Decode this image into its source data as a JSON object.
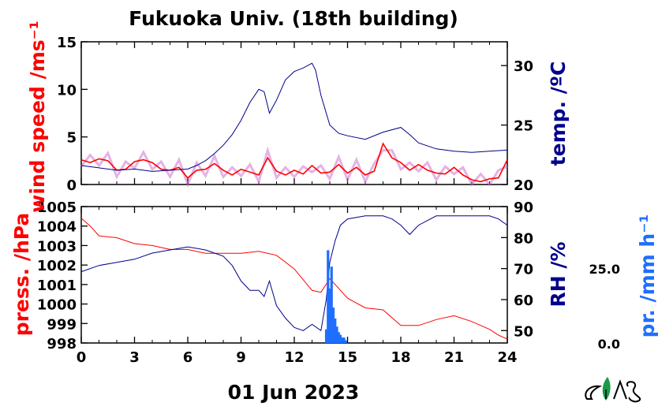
{
  "title": "Fukuoka Univ. (18th building)",
  "date_label": "01 Jun 2023",
  "colors": {
    "wind": "#ff0000",
    "wind_raw": "#cc66cc",
    "temp": "#00008b",
    "press": "#ff0000",
    "rh": "#00008b",
    "rain": "#1e6fff",
    "logo": "#1a9a4a"
  },
  "chart_data": [
    {
      "type": "line",
      "panel": "top",
      "grid": false,
      "x_ticks": [
        0,
        3,
        6,
        9,
        12,
        15,
        18,
        21,
        24
      ],
      "xlim": [
        0,
        24
      ],
      "left_axis": {
        "label": "wind speed /ms⁻¹",
        "ylim": [
          0,
          15
        ],
        "ticks": [
          0,
          5,
          10,
          15
        ]
      },
      "right_axis": {
        "label": "temp. /ºC",
        "ylim": [
          20,
          32
        ],
        "ticks": [
          20,
          25,
          30
        ]
      },
      "series": [
        {
          "axis": "left",
          "role": "wind",
          "x": [
            0,
            0.5,
            1,
            1.5,
            2,
            2.5,
            3,
            3.5,
            4,
            4.5,
            5,
            5.5,
            6,
            6.5,
            7,
            7.5,
            8,
            8.5,
            9,
            9.5,
            10,
            10.5,
            11,
            11.5,
            12,
            12.5,
            13,
            13.5,
            14,
            14.5,
            15,
            15.5,
            16,
            16.5,
            17,
            17.5,
            18,
            18.5,
            19,
            19.5,
            20,
            20.5,
            21,
            21.5,
            22,
            22.5,
            23,
            23.5,
            24
          ],
          "y": [
            2.6,
            2.3,
            2.7,
            2.5,
            1.5,
            1.6,
            2.4,
            2.6,
            2.3,
            1.6,
            1.5,
            1.8,
            0.7,
            1.5,
            1.6,
            2.2,
            1.5,
            1.0,
            1.6,
            1.3,
            1.0,
            2.8,
            1.4,
            1.0,
            1.5,
            1.1,
            2.0,
            1.2,
            1.3,
            2.1,
            1.2,
            1.8,
            1.0,
            1.4,
            4.3,
            2.8,
            2.3,
            1.5,
            2.1,
            1.5,
            1.2,
            1.1,
            1.8,
            1.0,
            0.5,
            0.3,
            0.6,
            0.7,
            2.6
          ]
        },
        {
          "axis": "right",
          "role": "temp",
          "x": [
            0,
            1,
            2,
            3,
            4,
            5,
            6,
            6.5,
            7,
            7.5,
            8,
            8.5,
            9,
            9.5,
            10,
            10.3,
            10.6,
            11,
            11.5,
            12,
            12.5,
            13,
            13.2,
            13.5,
            14,
            14.5,
            15,
            16,
            17,
            18,
            18.5,
            19,
            20,
            21,
            22,
            23,
            24
          ],
          "y": [
            21.6,
            21.4,
            21.2,
            21.3,
            21.1,
            21.2,
            21.3,
            21.6,
            22.0,
            22.6,
            23.3,
            24.2,
            25.4,
            26.9,
            28.0,
            27.8,
            26.0,
            27.1,
            28.8,
            29.5,
            29.8,
            30.2,
            29.6,
            27.5,
            25.0,
            24.3,
            24.1,
            23.8,
            24.4,
            24.8,
            24.2,
            23.5,
            23.0,
            22.8,
            22.7,
            22.8,
            22.9
          ]
        }
      ]
    },
    {
      "type": "line",
      "panel": "bottom",
      "grid": false,
      "x_ticks": [
        0,
        3,
        6,
        9,
        12,
        15,
        18,
        21,
        24
      ],
      "xlim": [
        0,
        24
      ],
      "left_axis": {
        "label": "press. /hPa",
        "ylim": [
          998,
          1005
        ],
        "ticks": [
          998,
          999,
          1000,
          1001,
          1002,
          1003,
          1004,
          1005
        ]
      },
      "right_axis": {
        "label": "RH /%",
        "ylim": [
          46,
          90
        ],
        "ticks": [
          50,
          60,
          70,
          80,
          90
        ]
      },
      "far_right_axis": {
        "label": "pr. /mm h⁻¹",
        "ticks": [
          "0.0",
          "25.0"
        ],
        "ylim": [
          0,
          50
        ]
      },
      "x_tick_labels": [
        "0",
        "3",
        "6",
        "9",
        "12",
        "15",
        "18",
        "21",
        "24"
      ],
      "series": [
        {
          "axis": "left",
          "role": "press",
          "x": [
            0,
            0.5,
            1,
            2,
            3,
            4,
            5,
            6,
            7,
            8,
            9,
            10,
            11,
            12,
            13,
            13.5,
            14,
            14.5,
            15,
            16,
            17,
            18,
            19,
            20,
            21,
            22,
            23,
            23.5,
            24
          ],
          "y": [
            1004.4,
            1004.0,
            1003.5,
            1003.4,
            1003.1,
            1003.0,
            1002.8,
            1002.8,
            1002.6,
            1002.6,
            1002.6,
            1002.7,
            1002.5,
            1001.8,
            1000.7,
            1000.6,
            1001.3,
            1000.8,
            1000.3,
            999.8,
            999.7,
            998.9,
            998.9,
            999.2,
            999.4,
            999.1,
            998.7,
            998.4,
            998.2
          ]
        },
        {
          "axis": "right",
          "role": "rh",
          "x": [
            0,
            1,
            2,
            3,
            4,
            5,
            6,
            7,
            8,
            8.5,
            9,
            9.5,
            10,
            10.3,
            10.6,
            11,
            11.5,
            12,
            12.5,
            13,
            13.5,
            13.8,
            14,
            14.3,
            14.6,
            15,
            16,
            17,
            17.5,
            18,
            18.5,
            19,
            20,
            21,
            22,
            23,
            23.5,
            24
          ],
          "y": [
            69,
            71,
            72,
            73,
            75,
            76,
            77,
            76,
            74,
            71,
            66,
            63,
            63,
            61,
            66,
            58,
            54,
            51,
            50,
            52,
            50,
            60,
            72,
            79,
            84,
            86,
            87,
            87,
            86,
            84,
            81,
            84,
            87,
            87,
            87,
            87,
            86,
            84
          ]
        },
        {
          "axis": "far_right",
          "role": "rain",
          "type": "bar",
          "x": [
            13.8,
            13.9,
            14.0,
            14.1,
            14.2,
            14.3,
            14.4,
            14.5,
            14.6,
            14.7,
            14.8,
            14.9
          ],
          "y": [
            5,
            34,
            20,
            28,
            13,
            9,
            6,
            4,
            3,
            2,
            2,
            1
          ]
        }
      ]
    }
  ]
}
